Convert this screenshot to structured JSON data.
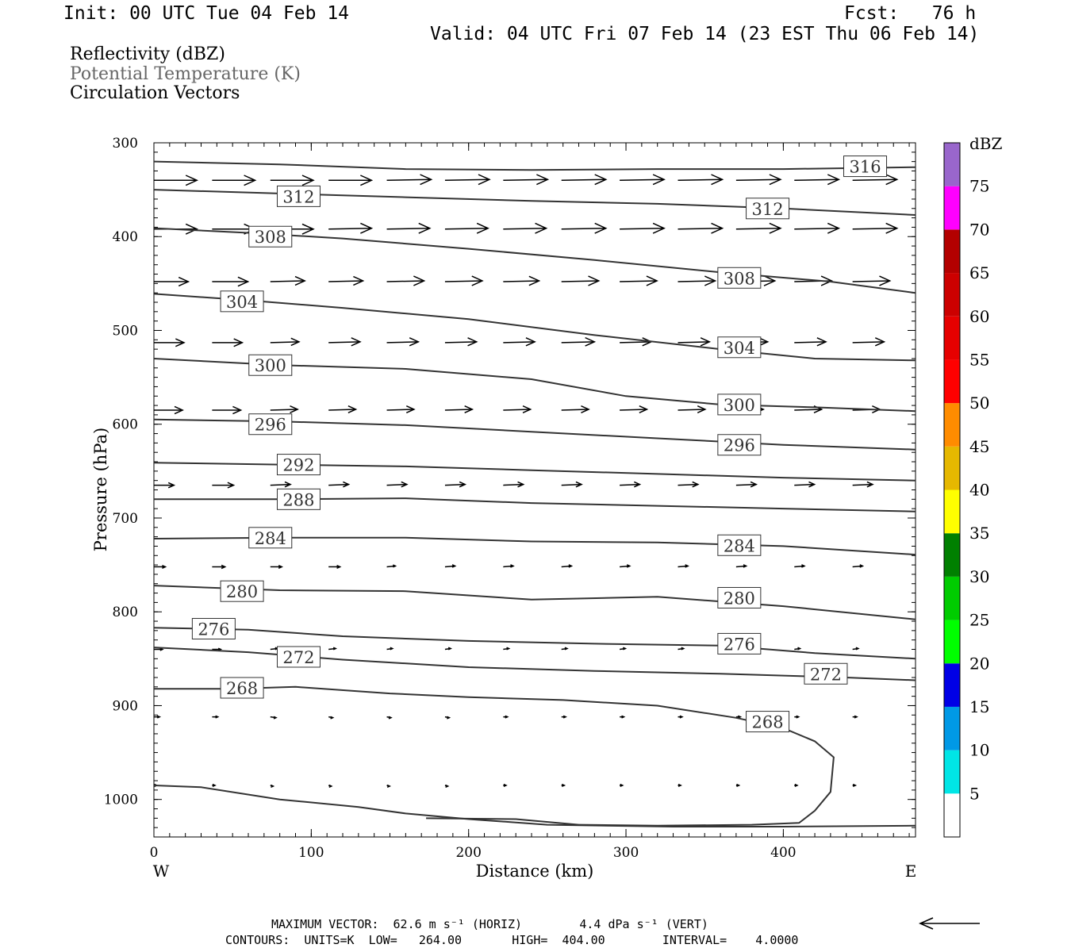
{
  "header": {
    "init": "Init: 00 UTC Tue 04 Feb 14",
    "fcst": "Fcst:   76 h",
    "valid": "Valid: 04 UTC Fri 07 Feb 14 (23 EST Thu 06 Feb 14)"
  },
  "fields": {
    "reflectivity": "Reflectivity (dBZ)",
    "theta": "Potential Temperature (K)",
    "vectors": "Circulation Vectors"
  },
  "footer": {
    "max_vector": "MAXIMUM VECTOR:  62.6 m s⁻¹ (HORIZ)        4.4 dPa s⁻¹ (VERT)",
    "contours": "CONTOURS:  UNITS=K  LOW=   264.00       HIGH=  404.00        INTERVAL=    4.0000"
  },
  "chart_data": {
    "type": "line",
    "xlabel": "Distance (km)",
    "ylabel": "Pressure (hPa)",
    "xlim": [
      0,
      484
    ],
    "ylim": [
      1040,
      300
    ],
    "x_ticks": [
      0,
      100,
      200,
      300,
      400
    ],
    "y_ticks": [
      300,
      400,
      500,
      600,
      700,
      800,
      900,
      1000
    ],
    "x_end_labels": {
      "left": "W",
      "right": "E"
    },
    "series_color": "#333333",
    "series": [
      {
        "name": "316",
        "label_at": [
          [
            452,
            325
          ]
        ],
        "points": [
          [
            0,
            320
          ],
          [
            80,
            323
          ],
          [
            160,
            328
          ],
          [
            240,
            329
          ],
          [
            320,
            328
          ],
          [
            400,
            328
          ],
          [
            484,
            326
          ]
        ]
      },
      {
        "name": "312",
        "label_at": [
          [
            92,
            357
          ],
          [
            390,
            370
          ]
        ],
        "points": [
          [
            0,
            350
          ],
          [
            80,
            354
          ],
          [
            160,
            358
          ],
          [
            240,
            362
          ],
          [
            320,
            365
          ],
          [
            400,
            370
          ],
          [
            484,
            377
          ]
        ]
      },
      {
        "name": "308",
        "label_at": [
          [
            74,
            400
          ],
          [
            372,
            444
          ]
        ],
        "points": [
          [
            0,
            391
          ],
          [
            60,
            396
          ],
          [
            120,
            402
          ],
          [
            200,
            413
          ],
          [
            280,
            425
          ],
          [
            360,
            438
          ],
          [
            430,
            448
          ],
          [
            484,
            460
          ]
        ]
      },
      {
        "name": "304",
        "label_at": [
          [
            56,
            469
          ],
          [
            372,
            518
          ]
        ],
        "points": [
          [
            0,
            461
          ],
          [
            60,
            468
          ],
          [
            120,
            476
          ],
          [
            200,
            488
          ],
          [
            280,
            505
          ],
          [
            360,
            520
          ],
          [
            420,
            530
          ],
          [
            484,
            532
          ]
        ]
      },
      {
        "name": "300",
        "label_at": [
          [
            74,
            537
          ]
        ],
        "points": [
          [
            0,
            530
          ],
          [
            80,
            537
          ],
          [
            160,
            541
          ],
          [
            240,
            552
          ],
          [
            300,
            570
          ],
          [
            360,
            579
          ],
          [
            420,
            582
          ],
          [
            484,
            586
          ]
        ]
      },
      {
        "name": "300",
        "label_at": [
          [
            372,
            579
          ]
        ],
        "points": []
      },
      {
        "name": "296",
        "label_at": [
          [
            74,
            600
          ],
          [
            372,
            622
          ]
        ],
        "points": [
          [
            0,
            595
          ],
          [
            80,
            597
          ],
          [
            160,
            601
          ],
          [
            240,
            608
          ],
          [
            320,
            615
          ],
          [
            400,
            622
          ],
          [
            484,
            627
          ]
        ]
      },
      {
        "name": "292",
        "label_at": [
          [
            92,
            643
          ]
        ],
        "points": [
          [
            0,
            641
          ],
          [
            80,
            643
          ],
          [
            160,
            645
          ],
          [
            240,
            649
          ],
          [
            320,
            653
          ],
          [
            400,
            657
          ],
          [
            484,
            660
          ]
        ]
      },
      {
        "name": "288",
        "label_at": [
          [
            92,
            680
          ]
        ],
        "points": [
          [
            0,
            680
          ],
          [
            80,
            680
          ],
          [
            160,
            679
          ],
          [
            240,
            684
          ],
          [
            320,
            687
          ],
          [
            400,
            690
          ],
          [
            484,
            693
          ]
        ]
      },
      {
        "name": "284",
        "label_at": [
          [
            74,
            721
          ],
          [
            372,
            729
          ]
        ],
        "points": [
          [
            0,
            722
          ],
          [
            80,
            721
          ],
          [
            160,
            721
          ],
          [
            240,
            725
          ],
          [
            320,
            726
          ],
          [
            400,
            730
          ],
          [
            484,
            739
          ]
        ]
      },
      {
        "name": "280",
        "label_at": [
          [
            56,
            778
          ],
          [
            372,
            785
          ]
        ],
        "points": [
          [
            0,
            772
          ],
          [
            80,
            777
          ],
          [
            160,
            778
          ],
          [
            240,
            787
          ],
          [
            320,
            784
          ],
          [
            400,
            794
          ],
          [
            484,
            808
          ]
        ]
      },
      {
        "name": "276",
        "label_at": [
          [
            38,
            818
          ],
          [
            372,
            834
          ]
        ],
        "points": [
          [
            0,
            817
          ],
          [
            60,
            819
          ],
          [
            120,
            826
          ],
          [
            200,
            831
          ],
          [
            280,
            834
          ],
          [
            360,
            836
          ],
          [
            420,
            844
          ],
          [
            484,
            850
          ]
        ]
      },
      {
        "name": "272",
        "label_at": [
          [
            92,
            848
          ],
          [
            427,
            866
          ]
        ],
        "points": [
          [
            0,
            838
          ],
          [
            60,
            843
          ],
          [
            120,
            851
          ],
          [
            200,
            859
          ],
          [
            280,
            863
          ],
          [
            360,
            866
          ],
          [
            440,
            870
          ],
          [
            484,
            873
          ]
        ]
      },
      {
        "name": "268",
        "label_at": [
          [
            56,
            881
          ],
          [
            390,
            917
          ]
        ],
        "points": [
          [
            0,
            882
          ],
          [
            50,
            882
          ],
          [
            90,
            880
          ],
          [
            150,
            887
          ],
          [
            200,
            891
          ],
          [
            260,
            894
          ],
          [
            320,
            900
          ],
          [
            370,
            913
          ],
          [
            400,
            924
          ],
          [
            420,
            938
          ],
          [
            432,
            955
          ],
          [
            430,
            992
          ],
          [
            420,
            1012
          ],
          [
            410,
            1025
          ],
          [
            380,
            1027
          ],
          [
            320,
            1028
          ],
          [
            270,
            1027
          ]
        ]
      },
      {
        "name": "264",
        "label_at": [],
        "points": [
          [
            0,
            985
          ],
          [
            30,
            987
          ],
          [
            80,
            1000
          ],
          [
            130,
            1008
          ],
          [
            160,
            1015
          ],
          [
            200,
            1021
          ],
          [
            250,
            1027
          ],
          [
            330,
            1029
          ],
          [
            400,
            1029
          ],
          [
            484,
            1028
          ]
        ]
      },
      {
        "name": "264",
        "label_at": [],
        "points": [
          [
            173,
            1020
          ],
          [
            230,
            1021
          ],
          [
            270,
            1027
          ]
        ]
      }
    ],
    "vectors": {
      "unit": "m s-1",
      "rows": [
        {
          "p": 340,
          "x": [
            0,
            37,
            74,
            111,
            148,
            185,
            222,
            259,
            296,
            333,
            370,
            407,
            444
          ],
          "u": [
            60,
            60,
            60,
            60,
            62,
            62,
            62,
            62,
            62,
            62,
            62,
            62,
            62
          ],
          "w": [
            0,
            0,
            0,
            0,
            -1,
            -1,
            -1,
            -1,
            -1,
            -1,
            -1,
            -1,
            -1
          ]
        },
        {
          "p": 392,
          "x": [
            0,
            37,
            74,
            111,
            148,
            185,
            222,
            259,
            296,
            333,
            370,
            407,
            444
          ],
          "u": [
            60,
            60,
            60,
            60,
            60,
            60,
            60,
            62,
            62,
            62,
            62,
            62,
            62
          ],
          "w": [
            0,
            0,
            0,
            -1,
            -1,
            -1,
            -1,
            -1,
            -1,
            -1,
            -1,
            -1,
            -1
          ]
        },
        {
          "p": 448,
          "x": [
            0,
            37,
            74,
            111,
            148,
            185,
            222,
            259,
            296,
            333,
            370,
            407,
            444
          ],
          "u": [
            48,
            50,
            48,
            48,
            52,
            52,
            50,
            52,
            52,
            52,
            54,
            52,
            52
          ],
          "w": [
            0,
            0,
            -1,
            -1,
            -1,
            -1,
            -1,
            -1,
            -1,
            -1,
            -1,
            -1,
            -1
          ]
        },
        {
          "p": 513,
          "x": [
            0,
            37,
            74,
            111,
            148,
            185,
            222,
            259,
            296,
            333,
            370,
            407,
            444
          ],
          "u": [
            42,
            42,
            40,
            44,
            44,
            44,
            44,
            46,
            44,
            44,
            44,
            44,
            44
          ],
          "w": [
            0,
            0,
            -1,
            -1,
            -1,
            -1,
            -1,
            -1,
            -1,
            -1,
            -1,
            -1,
            -1
          ]
        },
        {
          "p": 585,
          "x": [
            0,
            37,
            74,
            111,
            148,
            185,
            222,
            259,
            296,
            333,
            370,
            407,
            444
          ],
          "u": [
            40,
            40,
            38,
            38,
            38,
            38,
            38,
            38,
            38,
            38,
            38,
            38,
            38
          ],
          "w": [
            0,
            0,
            -1,
            -1,
            -1,
            -1,
            -1,
            -1,
            -1,
            -1,
            -1,
            -1,
            -1
          ]
        },
        {
          "p": 665,
          "x": [
            0,
            37,
            74,
            111,
            148,
            185,
            222,
            259,
            296,
            333,
            370,
            407,
            444
          ],
          "u": [
            28,
            30,
            28,
            28,
            28,
            28,
            28,
            28,
            28,
            28,
            28,
            28,
            28
          ],
          "w": [
            0,
            0,
            -1,
            -1,
            -1,
            -1,
            -1,
            -1,
            -1,
            -1,
            -1,
            -1,
            -1
          ]
        },
        {
          "p": 752,
          "x": [
            0,
            37,
            74,
            111,
            148,
            185,
            222,
            259,
            296,
            333,
            370,
            407,
            444
          ],
          "u": [
            16,
            18,
            16,
            16,
            12,
            14,
            14,
            14,
            14,
            14,
            14,
            14,
            14
          ],
          "w": [
            0,
            0,
            0,
            0,
            -1,
            -1,
            -1,
            -1,
            -1,
            -1,
            -1,
            -1,
            -1
          ]
        },
        {
          "p": 840,
          "x": [
            0,
            37,
            74,
            111,
            148,
            185,
            222,
            259,
            296,
            333,
            370,
            407,
            444
          ],
          "u": [
            12,
            12,
            10,
            10,
            8,
            8,
            8,
            8,
            8,
            8,
            8,
            8,
            8
          ],
          "w": [
            0,
            0,
            -1,
            -1,
            -1,
            -1,
            -1,
            -1,
            -1,
            -1,
            -1,
            -1,
            -1
          ]
        },
        {
          "p": 912,
          "x": [
            0,
            37,
            74,
            111,
            148,
            185,
            222,
            259,
            296,
            333,
            370,
            407,
            444
          ],
          "u": [
            8,
            8,
            8,
            6,
            6,
            6,
            6,
            6,
            6,
            6,
            6,
            6,
            6
          ],
          "w": [
            0,
            0,
            1,
            1,
            1,
            1,
            0,
            0,
            0,
            0,
            0,
            0,
            0
          ]
        },
        {
          "p": 985,
          "x": [
            0,
            37,
            74,
            111,
            148,
            185,
            222,
            259,
            296,
            333,
            370,
            407,
            444
          ],
          "u": [
            4,
            4,
            4,
            4,
            4,
            4,
            4,
            4,
            4,
            4,
            4,
            4,
            4
          ],
          "w": [
            0,
            0,
            1,
            1,
            1,
            1,
            0,
            0,
            0,
            0,
            0,
            0,
            0
          ]
        }
      ]
    },
    "colorbar": {
      "title": "dBZ",
      "bins": [
        {
          "label": "5",
          "color": "#00e6e6"
        },
        {
          "label": "10",
          "color": "#0099e6"
        },
        {
          "label": "15",
          "color": "#0000e6"
        },
        {
          "label": "20",
          "color": "#00ff00"
        },
        {
          "label": "25",
          "color": "#00cc00"
        },
        {
          "label": "30",
          "color": "#008000"
        },
        {
          "label": "35",
          "color": "#ffff00"
        },
        {
          "label": "40",
          "color": "#e6b800"
        },
        {
          "label": "45",
          "color": "#ff8c00"
        },
        {
          "label": "50",
          "color": "#ff0000"
        },
        {
          "label": "55",
          "color": "#e60000"
        },
        {
          "label": "60",
          "color": "#cc0000"
        },
        {
          "label": "65",
          "color": "#b30000"
        },
        {
          "label": "70",
          "color": "#ff00ff"
        },
        {
          "label": "75",
          "color": "#9966cc"
        }
      ]
    }
  }
}
